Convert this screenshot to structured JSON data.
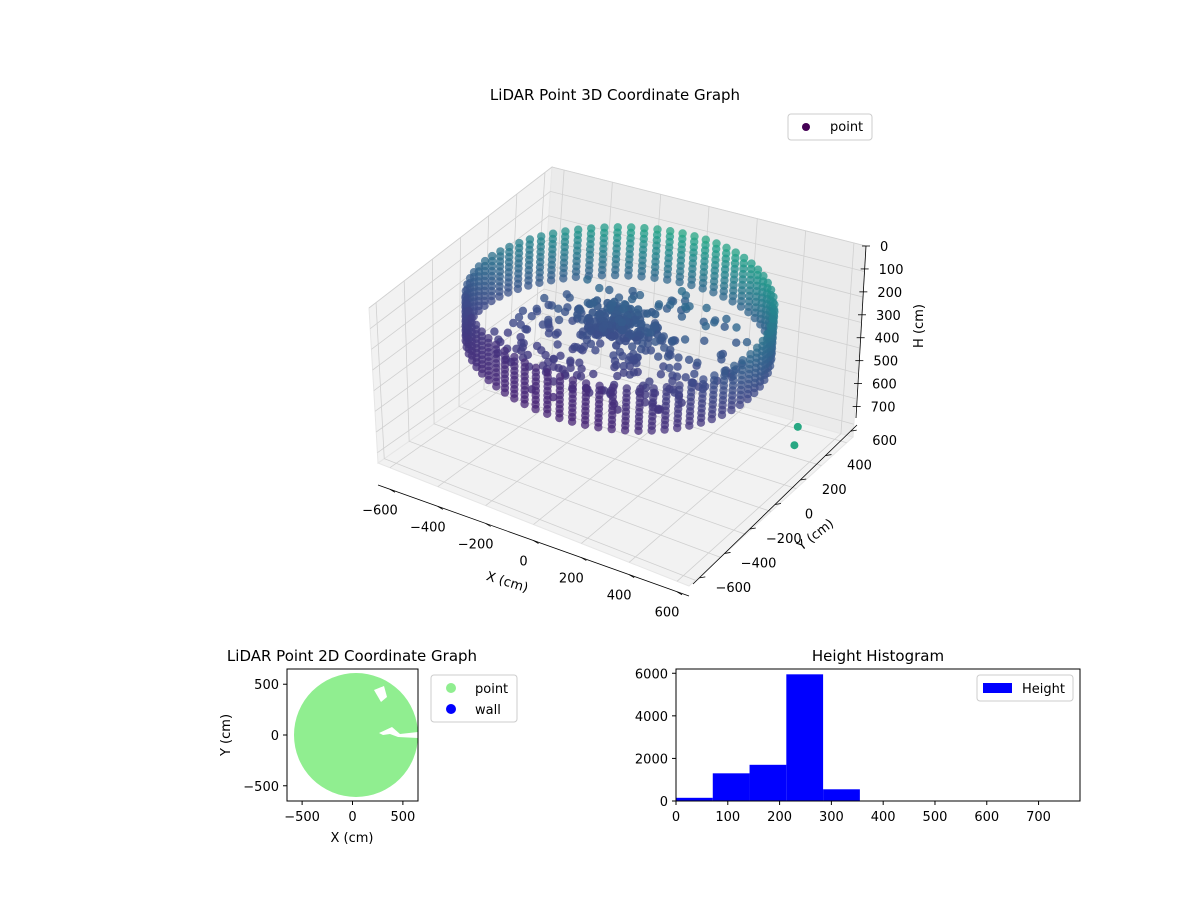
{
  "chart_data": [
    {
      "type": "scatter",
      "projection": "3d",
      "title": "LiDAR Point 3D Coordinate Graph",
      "xlabel": "X (cm)",
      "ylabel": "Y (cm)",
      "zlabel": "H (cm)",
      "xticks": [
        -600,
        -400,
        -200,
        0,
        200,
        400,
        600
      ],
      "yticks": [
        -600,
        -400,
        -200,
        0,
        200,
        400,
        600
      ],
      "zticks": [
        0,
        100,
        200,
        300,
        400,
        500,
        600,
        700
      ],
      "xlim": [
        -650,
        650
      ],
      "ylim": [
        -650,
        650
      ],
      "zlim": [
        0,
        750
      ],
      "z_inverted": true,
      "grid": true,
      "colormap": "viridis",
      "legend": {
        "entries": [
          "point"
        ],
        "placement": "upper right",
        "color": "#440154"
      },
      "series": [
        {
          "name": "point",
          "description_points": {
            "wall_ring": {
              "radius": 550,
              "h_from": 70,
              "h_to": 280
            },
            "floor_cluster_center": {
              "x": 150,
              "y": 150,
              "h": 230
            }
          }
        }
      ]
    },
    {
      "type": "scatter",
      "title": "LiDAR Point 2D Coordinate Graph",
      "xlabel": "X (cm)",
      "ylabel": "Y (cm)",
      "xticks": [
        -500,
        0,
        500
      ],
      "yticks": [
        -500,
        0,
        500
      ],
      "xlim": [
        -650,
        650
      ],
      "ylim": [
        -650,
        650
      ],
      "legend": {
        "entries": [
          "point",
          "wall"
        ],
        "placement": "outside right"
      },
      "series": [
        {
          "name": "point",
          "color": "#90ee90",
          "shape": "filled disc",
          "radius": 580
        },
        {
          "name": "wall",
          "color": "#0000ff"
        }
      ]
    },
    {
      "type": "bar",
      "subtype": "histogram",
      "title": "Height Histogram",
      "xticks": [
        0,
        100,
        200,
        300,
        400,
        500,
        600,
        700
      ],
      "yticks": [
        0,
        2000,
        4000,
        6000
      ],
      "xlim": [
        0,
        780
      ],
      "ylim": [
        0,
        6200
      ],
      "legend": {
        "entries": [
          "Height"
        ],
        "placement": "upper right"
      },
      "series": [
        {
          "name": "Height",
          "color": "#0000ff",
          "bins": [
            0,
            71,
            142,
            213,
            284,
            355,
            426,
            497,
            568,
            639,
            710
          ],
          "values": [
            150,
            1300,
            1700,
            5950,
            550,
            0,
            0,
            0,
            0,
            0
          ]
        }
      ]
    }
  ]
}
